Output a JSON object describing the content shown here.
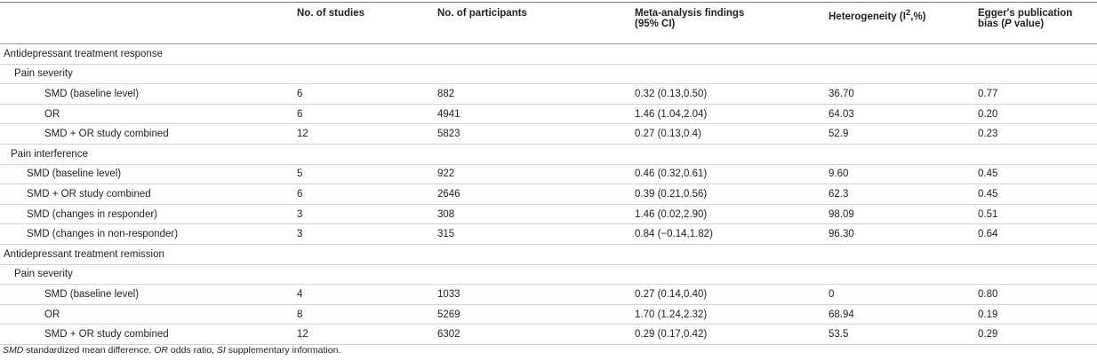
{
  "table": {
    "columns": [
      "No. of studies",
      "No. of participants",
      "Meta-analysis findings (95% CI)",
      {
        "before": "Heterogeneity (I",
        "sup": "2",
        "after": ",%)"
      },
      {
        "before": "Egger's publication bias (",
        "italic": "P",
        "after": " value)"
      }
    ],
    "rows": [
      [
        "Antidepressant treatment response"
      ],
      [
        "Pain severity"
      ],
      [
        "SMD (baseline level)",
        "6",
        "882",
        "0.32 (0.13,0.50)",
        "36.70",
        "0.77"
      ],
      [
        "OR",
        "6",
        "4941",
        "1.46 (1.04,2.04)",
        "64.03",
        "0.20"
      ],
      [
        "SMD + OR study combined",
        "12",
        "5823",
        "0.27 (0.13,0.4)",
        "52.9",
        "0.23"
      ],
      [
        "Pain interference"
      ],
      [
        "SMD (baseline level)",
        "5",
        "922",
        "0.46 (0.32,0.61)",
        "9.60",
        "0.45"
      ],
      [
        "SMD + OR study combined",
        "6",
        "2646",
        "0.39 (0.21,0.56)",
        "62.3",
        "0.45"
      ],
      [
        "SMD (changes in responder)",
        "3",
        "308",
        "1.46 (0.02,2.90)",
        "98.09",
        "0.51"
      ],
      [
        "SMD (changes in non-responder)",
        "3",
        "315",
        "0.84 (−0.14,1.82)",
        "96.30",
        "0.64"
      ],
      [
        "Antidepressant treatment remission"
      ],
      [
        "Pain severity"
      ],
      [
        "SMD (baseline level)",
        "4",
        "1033",
        "0.27 (0.14,0.40)",
        "0",
        "0.80"
      ],
      [
        "OR",
        "8",
        "5269",
        "1.70 (1.24,2.32)",
        "68.94",
        "0.19"
      ],
      [
        "SMD + OR study combined",
        "12",
        "6302",
        "0.29 (0.17,0.42)",
        "53.5",
        "0.29"
      ]
    ]
  },
  "footnote": [
    "SMD",
    " standardized mean difference, ",
    "OR",
    " odds ratio, ",
    "SI",
    " supplementary information."
  ]
}
